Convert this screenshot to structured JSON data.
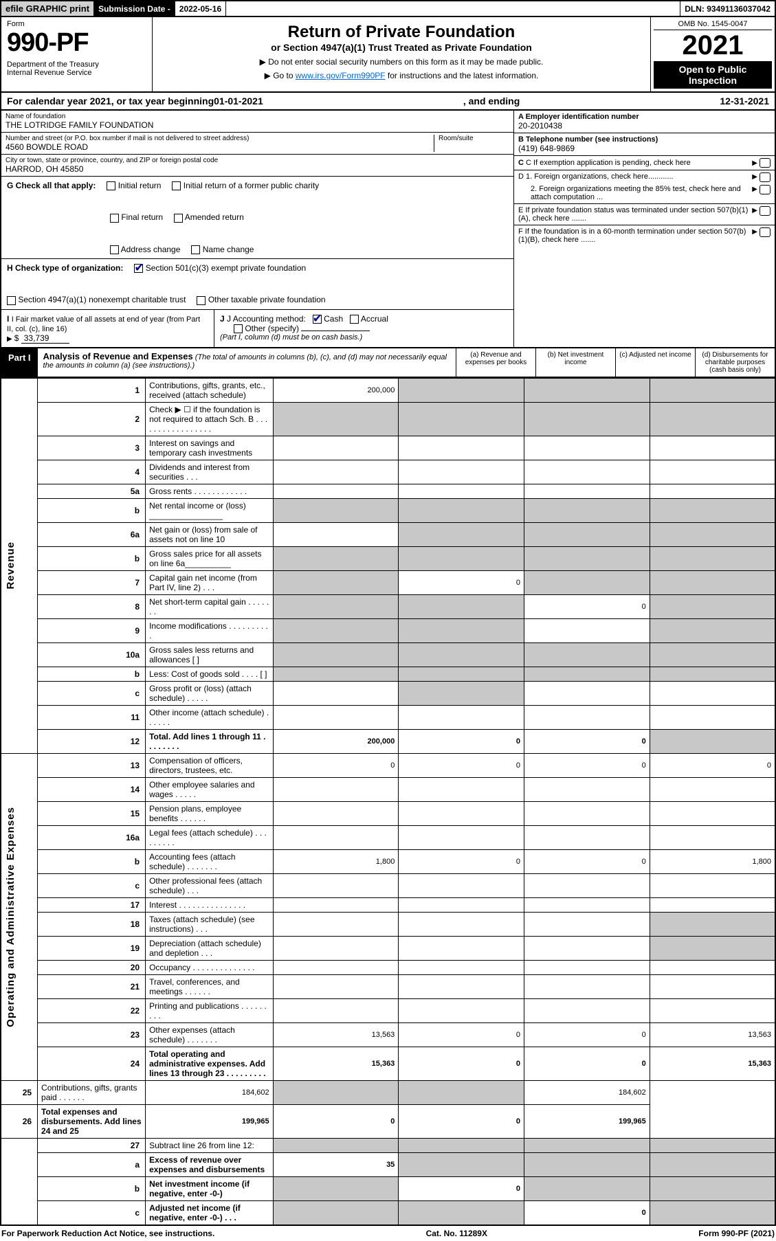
{
  "topbar": {
    "efile": "efile GRAPHIC print",
    "subdate_label": "Submission Date - ",
    "subdate_val": "2022-05-16",
    "dln": "DLN: 93491136037042"
  },
  "header": {
    "form_word": "Form",
    "form_num": "990-PF",
    "dept": "Department of the Treasury\nInternal Revenue Service",
    "title": "Return of Private Foundation",
    "subtitle": "or Section 4947(a)(1) Trust Treated as Private Foundation",
    "instr1": "▶ Do not enter social security numbers on this form as it may be made public.",
    "instr2_pre": "▶ Go to ",
    "instr2_link": "www.irs.gov/Form990PF",
    "instr2_post": " for instructions and the latest information.",
    "omb": "OMB No. 1545-0047",
    "year": "2021",
    "open": "Open to Public Inspection"
  },
  "calendar": {
    "pre": "For calendar year 2021, or tax year beginning ",
    "begin": "01-01-2021",
    "mid": ", and ending ",
    "end": "12-31-2021"
  },
  "info": {
    "name_label": "Name of foundation",
    "name": "THE LOTRIDGE FAMILY FOUNDATION",
    "addr_label": "Number and street (or P.O. box number if mail is not delivered to street address)",
    "addr": "4560 BOWDLE ROAD",
    "room_label": "Room/suite",
    "room": "",
    "city_label": "City or town, state or province, country, and ZIP or foreign postal code",
    "city": "HARROD, OH  45850",
    "ein_label": "A Employer identification number",
    "ein": "20-2010438",
    "phone_label": "B Telephone number (see instructions)",
    "phone": "(419) 648-9869",
    "c_label": "C If exemption application is pending, check here",
    "d1": "D 1. Foreign organizations, check here............",
    "d2": "2. Foreign organizations meeting the 85% test, check here and attach computation ...",
    "e_label": "E  If private foundation status was terminated under section 507(b)(1)(A), check here .......",
    "f_label": "F  If the foundation is in a 60-month termination under section 507(b)(1)(B), check here .......",
    "g_label": "G Check all that apply:",
    "g_opts": [
      "Initial return",
      "Final return",
      "Address change",
      "Initial return of a former public charity",
      "Amended return",
      "Name change"
    ],
    "h_label": "H Check type of organization:",
    "h1": "Section 501(c)(3) exempt private foundation",
    "h2": "Section 4947(a)(1) nonexempt charitable trust",
    "h3": "Other taxable private foundation",
    "i_label": "I Fair market value of all assets at end of year (from Part II, col. (c), line 16)",
    "i_val": "33,739",
    "j_label": "J Accounting method:",
    "j_cash": "Cash",
    "j_accrual": "Accrual",
    "j_other": "Other (specify)",
    "j_note": "(Part I, column (d) must be on cash basis.)"
  },
  "part1": {
    "tag": "Part I",
    "title": "Analysis of Revenue and Expenses",
    "title_note": " (The total of amounts in columns (b), (c), and (d) may not necessarily equal the amounts in column (a) (see instructions).)",
    "cols": [
      "(a)  Revenue and expenses per books",
      "(b)  Net investment income",
      "(c)  Adjusted net income",
      "(d)  Disbursements for charitable purposes (cash basis only)"
    ],
    "side_rev": "Revenue",
    "side_exp": "Operating and Administrative Expenses"
  },
  "rows": [
    {
      "n": "1",
      "d": "Contributions, gifts, grants, etc., received (attach schedule)",
      "a": "200,000",
      "bg": [
        "",
        "b",
        "b",
        "b"
      ]
    },
    {
      "n": "2",
      "d": "Check ▶ ☐ if the foundation is not required to attach Sch. B   .  .  .  .  .  .  .  .  .  .  .  .  .  .  .  .  .",
      "bg": [
        "b",
        "b",
        "b",
        "b"
      ]
    },
    {
      "n": "3",
      "d": "Interest on savings and temporary cash investments"
    },
    {
      "n": "4",
      "d": "Dividends and interest from securities    .   .   ."
    },
    {
      "n": "5a",
      "d": "Gross rents    .   .   .   .   .   .   .   .   .   .   .   ."
    },
    {
      "n": "b",
      "d": "Net rental income or (loss)  ________________",
      "bg": [
        "b",
        "b",
        "b",
        "b"
      ]
    },
    {
      "n": "6a",
      "d": "Net gain or (loss) from sale of assets not on line 10",
      "bg": [
        "",
        "b",
        "b",
        "b"
      ]
    },
    {
      "n": "b",
      "d": "Gross sales price for all assets on line 6a__________",
      "bg": [
        "b",
        "b",
        "b",
        "b"
      ]
    },
    {
      "n": "7",
      "d": "Capital gain net income (from Part IV, line 2)   .   .   .",
      "b": "0",
      "bg": [
        "b",
        "",
        "b",
        "b"
      ]
    },
    {
      "n": "8",
      "d": "Net short-term capital gain   .   .   .   .   .   .   .",
      "c": "0",
      "bg": [
        "b",
        "b",
        "",
        "b"
      ]
    },
    {
      "n": "9",
      "d": "Income modifications  .   .   .   .   .   .   .   .   .   .",
      "bg": [
        "b",
        "b",
        "",
        "b"
      ]
    },
    {
      "n": "10a",
      "d": "Gross sales less returns and allowances   [      ]",
      "bg": [
        "b",
        "b",
        "b",
        "b"
      ]
    },
    {
      "n": "b",
      "d": "Less: Cost of goods sold    .   .   .   .      [      ]",
      "bg": [
        "b",
        "b",
        "b",
        "b"
      ]
    },
    {
      "n": "c",
      "d": "Gross profit or (loss) (attach schedule)    .   .   .   .   .",
      "bg": [
        "",
        "b",
        "",
        ""
      ]
    },
    {
      "n": "11",
      "d": "Other income (attach schedule)    .   .   .   .   .   ."
    },
    {
      "n": "12",
      "d": "Total. Add lines 1 through 11    .   .   .   .   .   .   .   .",
      "a": "200,000",
      "b": "0",
      "c": "0",
      "bold": true,
      "bg": [
        "",
        "",
        "",
        "b"
      ]
    },
    {
      "n": "13",
      "d": "Compensation of officers, directors, trustees, etc.",
      "a": "0",
      "b": "0",
      "c": "0",
      "dd": "0",
      "sect": "exp"
    },
    {
      "n": "14",
      "d": "Other employee salaries and wages    .   .   .   .   ."
    },
    {
      "n": "15",
      "d": "Pension plans, employee benefits  .   .   .   .   .   ."
    },
    {
      "n": "16a",
      "d": "Legal fees (attach schedule)  .   .   .   .   .   .   .   .   ."
    },
    {
      "n": "b",
      "d": "Accounting fees (attach schedule)  .   .   .   .   .   .   .",
      "a": "1,800",
      "b": "0",
      "c": "0",
      "dd": "1,800"
    },
    {
      "n": "c",
      "d": "Other professional fees (attach schedule)    .   .   ."
    },
    {
      "n": "17",
      "d": "Interest  .   .   .   .   .   .   .   .   .   .   .   .   .   .   ."
    },
    {
      "n": "18",
      "d": "Taxes (attach schedule) (see instructions)    .   .   .",
      "bg": [
        "",
        "",
        "",
        "b"
      ]
    },
    {
      "n": "19",
      "d": "Depreciation (attach schedule) and depletion    .   .   .",
      "bg": [
        "",
        "",
        "",
        "b"
      ]
    },
    {
      "n": "20",
      "d": "Occupancy  .   .   .   .   .   .   .   .   .   .   .   .   .   ."
    },
    {
      "n": "21",
      "d": "Travel, conferences, and meetings  .   .   .   .   .   ."
    },
    {
      "n": "22",
      "d": "Printing and publications  .   .   .   .   .   .   .   .   ."
    },
    {
      "n": "23",
      "d": "Other expenses (attach schedule)  .   .   .   .   .   .   .",
      "a": "13,563",
      "b": "0",
      "c": "0",
      "dd": "13,563"
    },
    {
      "n": "24",
      "d": "Total operating and administrative expenses. Add lines 13 through 23   .   .   .   .   .   .   .   .   .",
      "a": "15,363",
      "b": "0",
      "c": "0",
      "dd": "15,363",
      "bold": true
    },
    {
      "n": "25",
      "d": "Contributions, gifts, grants paid    .   .   .   .   .   .",
      "a": "184,602",
      "dd": "184,602",
      "bg": [
        "",
        "b",
        "b",
        ""
      ]
    },
    {
      "n": "26",
      "d": "Total expenses and disbursements. Add lines 24 and 25",
      "a": "199,965",
      "b": "0",
      "c": "0",
      "dd": "199,965",
      "bold": true
    },
    {
      "n": "27",
      "d": "Subtract line 26 from line 12:",
      "bg": [
        "b",
        "b",
        "b",
        "b"
      ],
      "sect": "end"
    },
    {
      "n": "a",
      "d": "Excess of revenue over expenses and disbursements",
      "a": "35",
      "bold": true,
      "bg": [
        "",
        "b",
        "b",
        "b"
      ]
    },
    {
      "n": "b",
      "d": "Net investment income (if negative, enter -0-)",
      "b": "0",
      "bold": true,
      "bg": [
        "b",
        "",
        "b",
        "b"
      ]
    },
    {
      "n": "c",
      "d": "Adjusted net income (if negative, enter -0-)   .   .   .",
      "c": "0",
      "bold": true,
      "bg": [
        "b",
        "b",
        "",
        "b"
      ]
    }
  ],
  "footer": {
    "left": "For Paperwork Reduction Act Notice, see instructions.",
    "mid": "Cat. No. 11289X",
    "right": "Form 990-PF (2021)"
  }
}
